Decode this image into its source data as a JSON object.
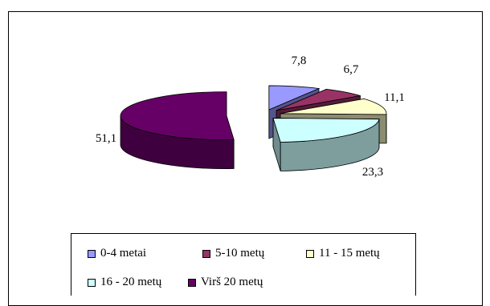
{
  "chart_data": {
    "type": "pie",
    "title": "",
    "categories": [
      "0-4 metai",
      "5-10 metų",
      "11 - 15 metų",
      "16 - 20 metų",
      "Virš  20 metų"
    ],
    "values": [
      7.8,
      6.7,
      11.1,
      23.3,
      51.1
    ],
    "data_labels": [
      "7,8",
      "6,7",
      "11,1",
      "23,3",
      "51,1"
    ],
    "colors": [
      "#9999ff",
      "#993366",
      "#ffffcc",
      "#ccffff",
      "#660066"
    ],
    "legend_position": "bottom",
    "exploded": true,
    "three_d": true
  }
}
